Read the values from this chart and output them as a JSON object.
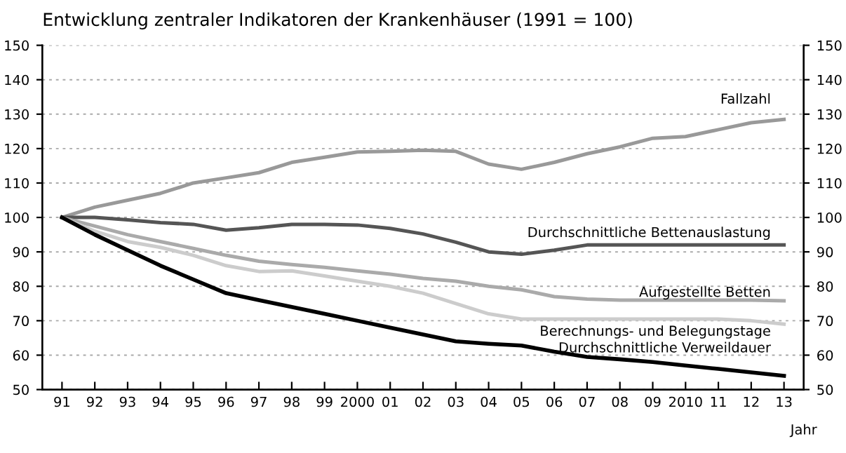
{
  "chart_data": {
    "type": "line",
    "title": "Entwicklung zentraler Indikatoren der Krankenhäuser (1991 = 100)",
    "xlabel": "Jahr",
    "categories": [
      "91",
      "92",
      "93",
      "94",
      "95",
      "96",
      "97",
      "98",
      "99",
      "2000",
      "01",
      "02",
      "03",
      "04",
      "05",
      "06",
      "07",
      "08",
      "09",
      "2010",
      "11",
      "12",
      "13"
    ],
    "series": [
      {
        "name": "Fallzahl",
        "color": "#999999",
        "values": [
          100,
          103,
          105,
          107,
          110,
          111.5,
          113,
          116,
          117.5,
          119,
          119.2,
          119.5,
          119.2,
          115.5,
          114,
          116,
          118.5,
          120.5,
          123,
          123.5,
          125.5,
          127.5,
          128.5
        ]
      },
      {
        "name": "Durchschnittliche Bettenauslastung",
        "color": "#555555",
        "values": [
          100,
          100,
          99.3,
          98.5,
          98,
          96.3,
          97,
          98,
          98,
          97.8,
          96.8,
          95.2,
          92.8,
          90,
          89.3,
          90.5,
          92,
          92,
          92,
          92,
          92,
          92,
          92
        ]
      },
      {
        "name": "Aufgestellte Betten",
        "color": "#aaaaaa",
        "values": [
          100,
          97.5,
          95,
          93,
          91,
          89,
          87.3,
          86.3,
          85.5,
          84.5,
          83.5,
          82.3,
          81.5,
          80,
          79,
          77,
          76.3,
          76,
          76,
          76,
          76,
          76,
          75.8
        ]
      },
      {
        "name": "Berechnungs- und Belegungstage",
        "color": "#cccccc",
        "values": [
          100,
          96,
          93,
          91.3,
          89,
          86,
          84.3,
          84.5,
          83,
          81.5,
          80,
          78,
          75,
          72,
          70.5,
          70.5,
          70.5,
          70.5,
          70.5,
          70.5,
          70.5,
          70,
          69
        ]
      },
      {
        "name": "Durchschnittliche Verweildauer",
        "color": "#000000",
        "values": [
          100,
          95,
          90.5,
          86,
          82,
          78,
          76,
          74,
          72,
          70,
          68,
          66,
          64,
          63.3,
          62.8,
          61,
          59.5,
          58.8,
          58,
          57,
          56,
          55,
          54
        ]
      }
    ],
    "ylim": [
      50,
      150
    ],
    "yticks": [
      50,
      60,
      70,
      80,
      90,
      100,
      110,
      120,
      130,
      140,
      150
    ],
    "y2lim": [
      50,
      150
    ],
    "y2ticks": [
      50,
      60,
      70,
      80,
      90,
      100,
      110,
      120,
      130,
      140,
      150
    ],
    "grid": "y",
    "line_style": "solid",
    "marker": "none",
    "legend": false
  }
}
